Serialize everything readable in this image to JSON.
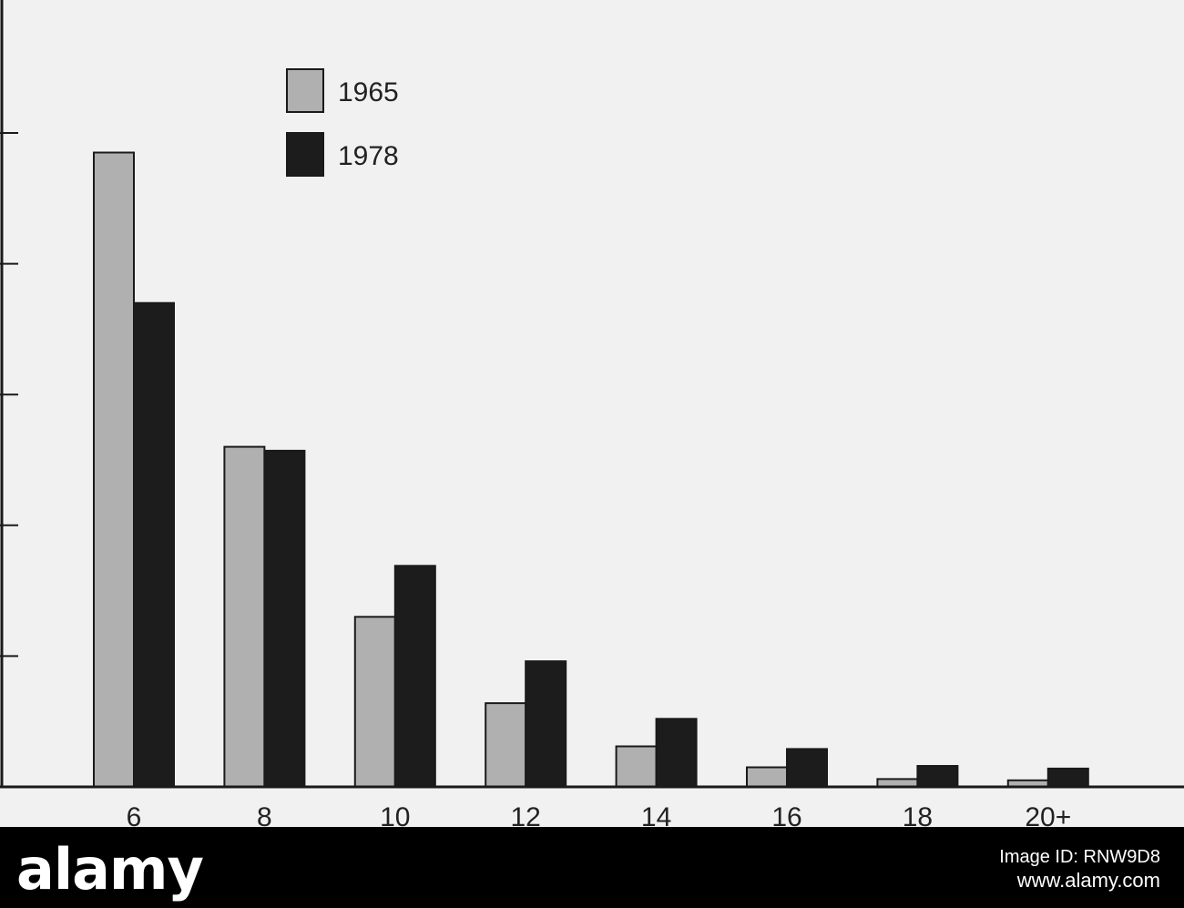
{
  "chart_data": {
    "type": "bar",
    "categories": [
      "6",
      "8",
      "10",
      "12",
      "14",
      "16",
      "18",
      "20+"
    ],
    "series": [
      {
        "name": "1965",
        "color": "#b0b0b0",
        "values": [
          4.85,
          2.6,
          1.3,
          0.64,
          0.31,
          0.15,
          0.06,
          0.05
        ]
      },
      {
        "name": "1978",
        "color": "#1c1c1c",
        "values": [
          3.7,
          2.57,
          1.69,
          0.96,
          0.52,
          0.29,
          0.16,
          0.14
        ]
      }
    ],
    "ylim": [
      0,
      6
    ],
    "yticks": [
      1,
      2,
      3,
      4,
      5
    ],
    "title": "",
    "xlabel": "",
    "ylabel": "",
    "legend_position": "top-left",
    "grid": false
  },
  "watermark": {
    "logo": "alamy",
    "image_id_label": "Image ID: RNW9D8",
    "site": "www.alamy.com"
  }
}
